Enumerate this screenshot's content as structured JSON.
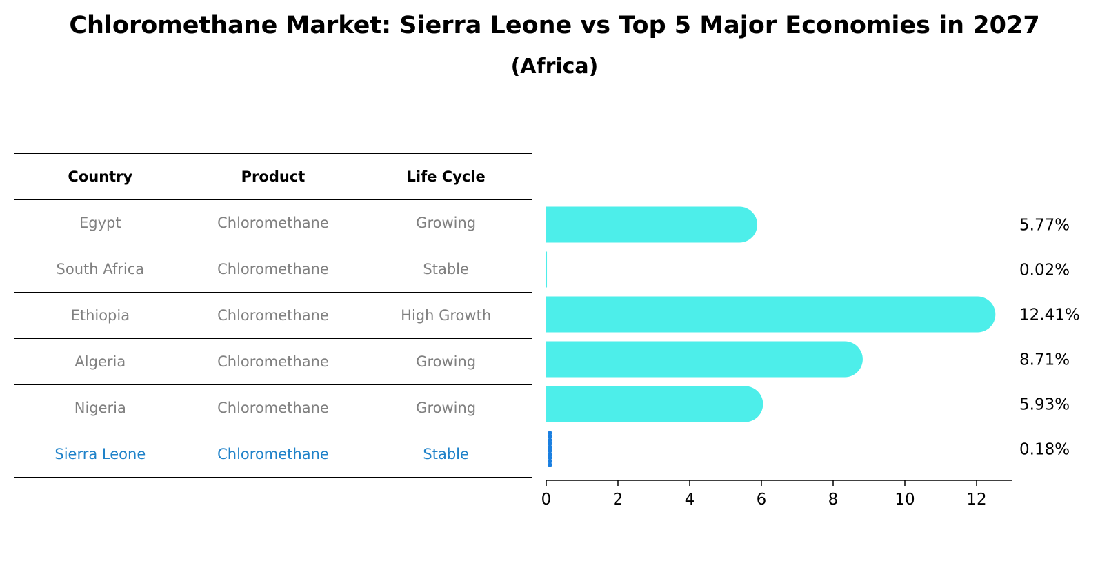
{
  "title": "Chloromethane Market: Sierra Leone vs Top 5 Major Economies in 2027",
  "subtitle": "(Africa)",
  "table": {
    "headers": [
      "Country",
      "Product",
      "Life Cycle"
    ],
    "rows": [
      {
        "country": "Egypt",
        "product": "Chloromethane",
        "life_cycle": "Growing"
      },
      {
        "country": "South Africa",
        "product": "Chloromethane",
        "life_cycle": "Stable"
      },
      {
        "country": "Ethiopia",
        "product": "Chloromethane",
        "life_cycle": "High Growth"
      },
      {
        "country": "Algeria",
        "product": "Chloromethane",
        "life_cycle": "Growing"
      },
      {
        "country": "Nigeria",
        "product": "Chloromethane",
        "life_cycle": "Growing"
      },
      {
        "country": "Sierra Leone",
        "product": "Chloromethane",
        "life_cycle": "Stable"
      }
    ]
  },
  "chart_data": {
    "type": "bar",
    "orientation": "horizontal",
    "title": "Chloromethane Market: Sierra Leone vs Top 5 Major Economies in 2027",
    "subtitle": "(Africa)",
    "categories": [
      "Egypt",
      "South Africa",
      "Ethiopia",
      "Algeria",
      "Nigeria",
      "Sierra Leone"
    ],
    "values": [
      5.77,
      0.02,
      12.41,
      8.71,
      5.93,
      0.18
    ],
    "data_labels": [
      "5.77%",
      "0.02%",
      "12.41%",
      "8.71%",
      "5.93%",
      "0.18%"
    ],
    "highlight": "Sierra Leone",
    "xlabel": "",
    "ylabel": "",
    "xlim": [
      0,
      13
    ],
    "xticks": [
      0,
      2,
      4,
      6,
      8,
      10,
      12
    ],
    "grid": false,
    "colors": {
      "bar": "#4deeea",
      "highlight": "#1a7fe0",
      "table_text": "#808080",
      "table_highlight": "#1f82c9"
    }
  }
}
